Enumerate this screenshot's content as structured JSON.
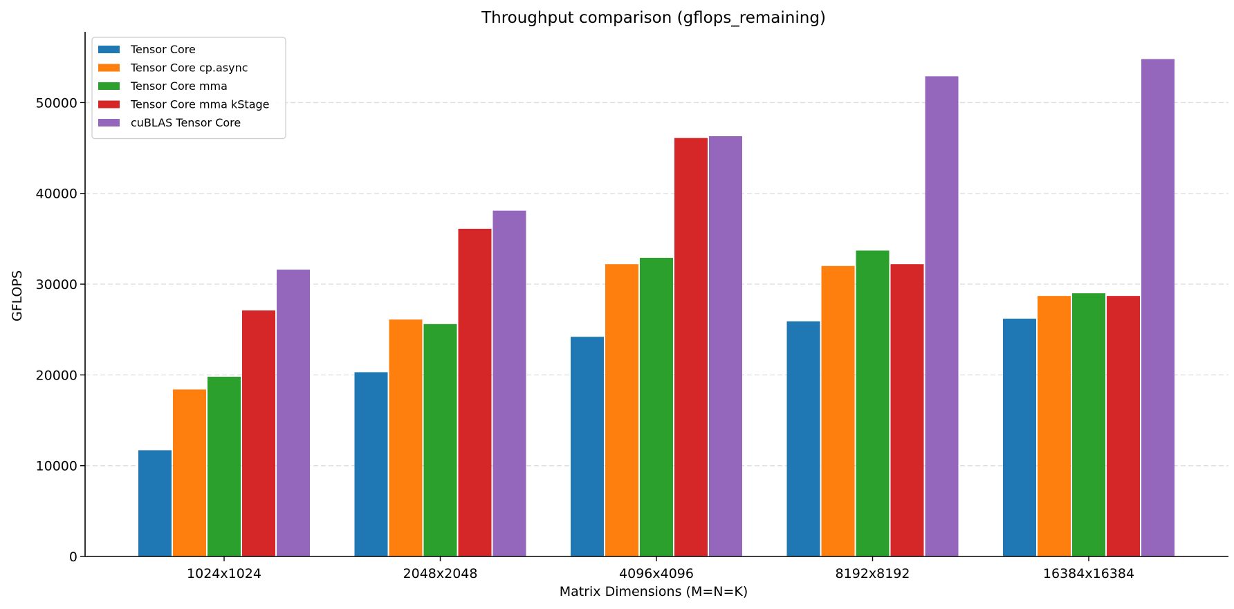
{
  "chart_data": {
    "type": "bar",
    "title": "Throughput comparison (gflops_remaining)",
    "xlabel": "Matrix Dimensions (M=N=K)",
    "ylabel": "GFLOPS",
    "categories": [
      "1024x1024",
      "2048x2048",
      "4096x4096",
      "8192x8192",
      "16384x16384"
    ],
    "ylim": [
      0,
      57800
    ],
    "yticks": [
      0,
      10000,
      20000,
      30000,
      40000,
      50000
    ],
    "ytick_labels": [
      "0",
      "10000",
      "20000",
      "30000",
      "40000",
      "50000"
    ],
    "grid": "horizontal dashed",
    "legend_position": "top-left",
    "series": [
      {
        "name": "Tensor Core",
        "color": "#1f77b4",
        "values": [
          11700,
          20300,
          24200,
          25900,
          26200
        ]
      },
      {
        "name": "Tensor Core cp.async",
        "color": "#ff7f0e",
        "values": [
          18400,
          26100,
          32200,
          32000,
          28700
        ]
      },
      {
        "name": "Tensor Core mma",
        "color": "#2ca02c",
        "values": [
          19800,
          25600,
          32900,
          33700,
          29000
        ]
      },
      {
        "name": "Tensor Core mma kStage",
        "color": "#d62728",
        "values": [
          27100,
          36100,
          46100,
          32200,
          28700
        ]
      },
      {
        "name": "cuBLAS Tensor Core",
        "color": "#9467bd",
        "values": [
          31600,
          38100,
          46300,
          52900,
          54800
        ]
      }
    ]
  }
}
